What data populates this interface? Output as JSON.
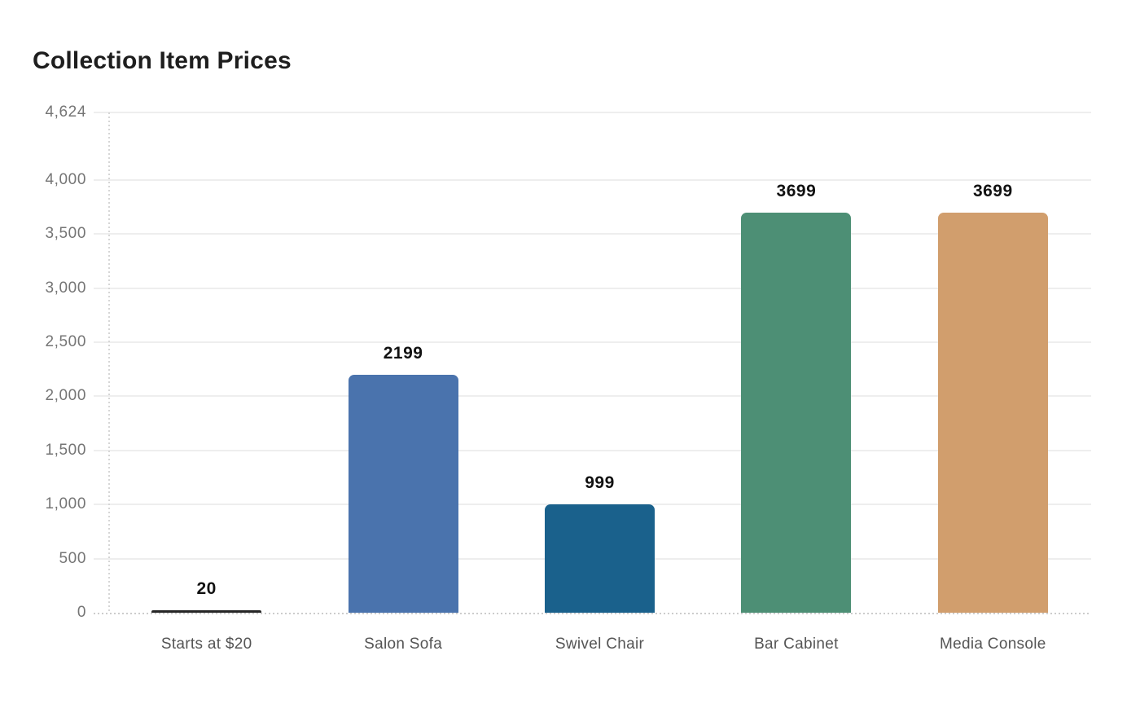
{
  "title": "Collection Item Prices",
  "chart_data": {
    "type": "bar",
    "title": "Collection Item Prices",
    "categories": [
      "Starts at $20",
      "Salon Sofa",
      "Swivel Chair",
      "Bar Cabinet",
      "Media Console"
    ],
    "values": [
      20,
      2199,
      999,
      3699,
      3699
    ],
    "value_labels": [
      "20",
      "2199",
      "999",
      "3699",
      "3699"
    ],
    "bar_colors": [
      "#262626",
      "#4a73ad",
      "#1a618c",
      "#4d8f75",
      "#d19e6d"
    ],
    "xlabel": "",
    "ylabel": "",
    "ylim": [
      0,
      4624
    ],
    "yticks": [
      {
        "value": 4624,
        "label": "4,624"
      },
      {
        "value": 4000,
        "label": "4,000"
      },
      {
        "value": 3500,
        "label": "3,500"
      },
      {
        "value": 3000,
        "label": "3,000"
      },
      {
        "value": 2500,
        "label": "2,500"
      },
      {
        "value": 2000,
        "label": "2,000"
      },
      {
        "value": 1500,
        "label": "1,500"
      },
      {
        "value": 1000,
        "label": "1,000"
      },
      {
        "value": 500,
        "label": "500"
      },
      {
        "value": 0,
        "label": "0"
      }
    ],
    "grid": "horizontal",
    "legend": "none",
    "baseline_style": "dotted"
  },
  "colors": {
    "background": "#ffffff",
    "title_text": "#1e1e1e",
    "tick_text": "#757575",
    "category_text": "#555555",
    "value_text": "#111111",
    "gridline": "#eeeeee",
    "axis_dotted": "#cccccc"
  }
}
